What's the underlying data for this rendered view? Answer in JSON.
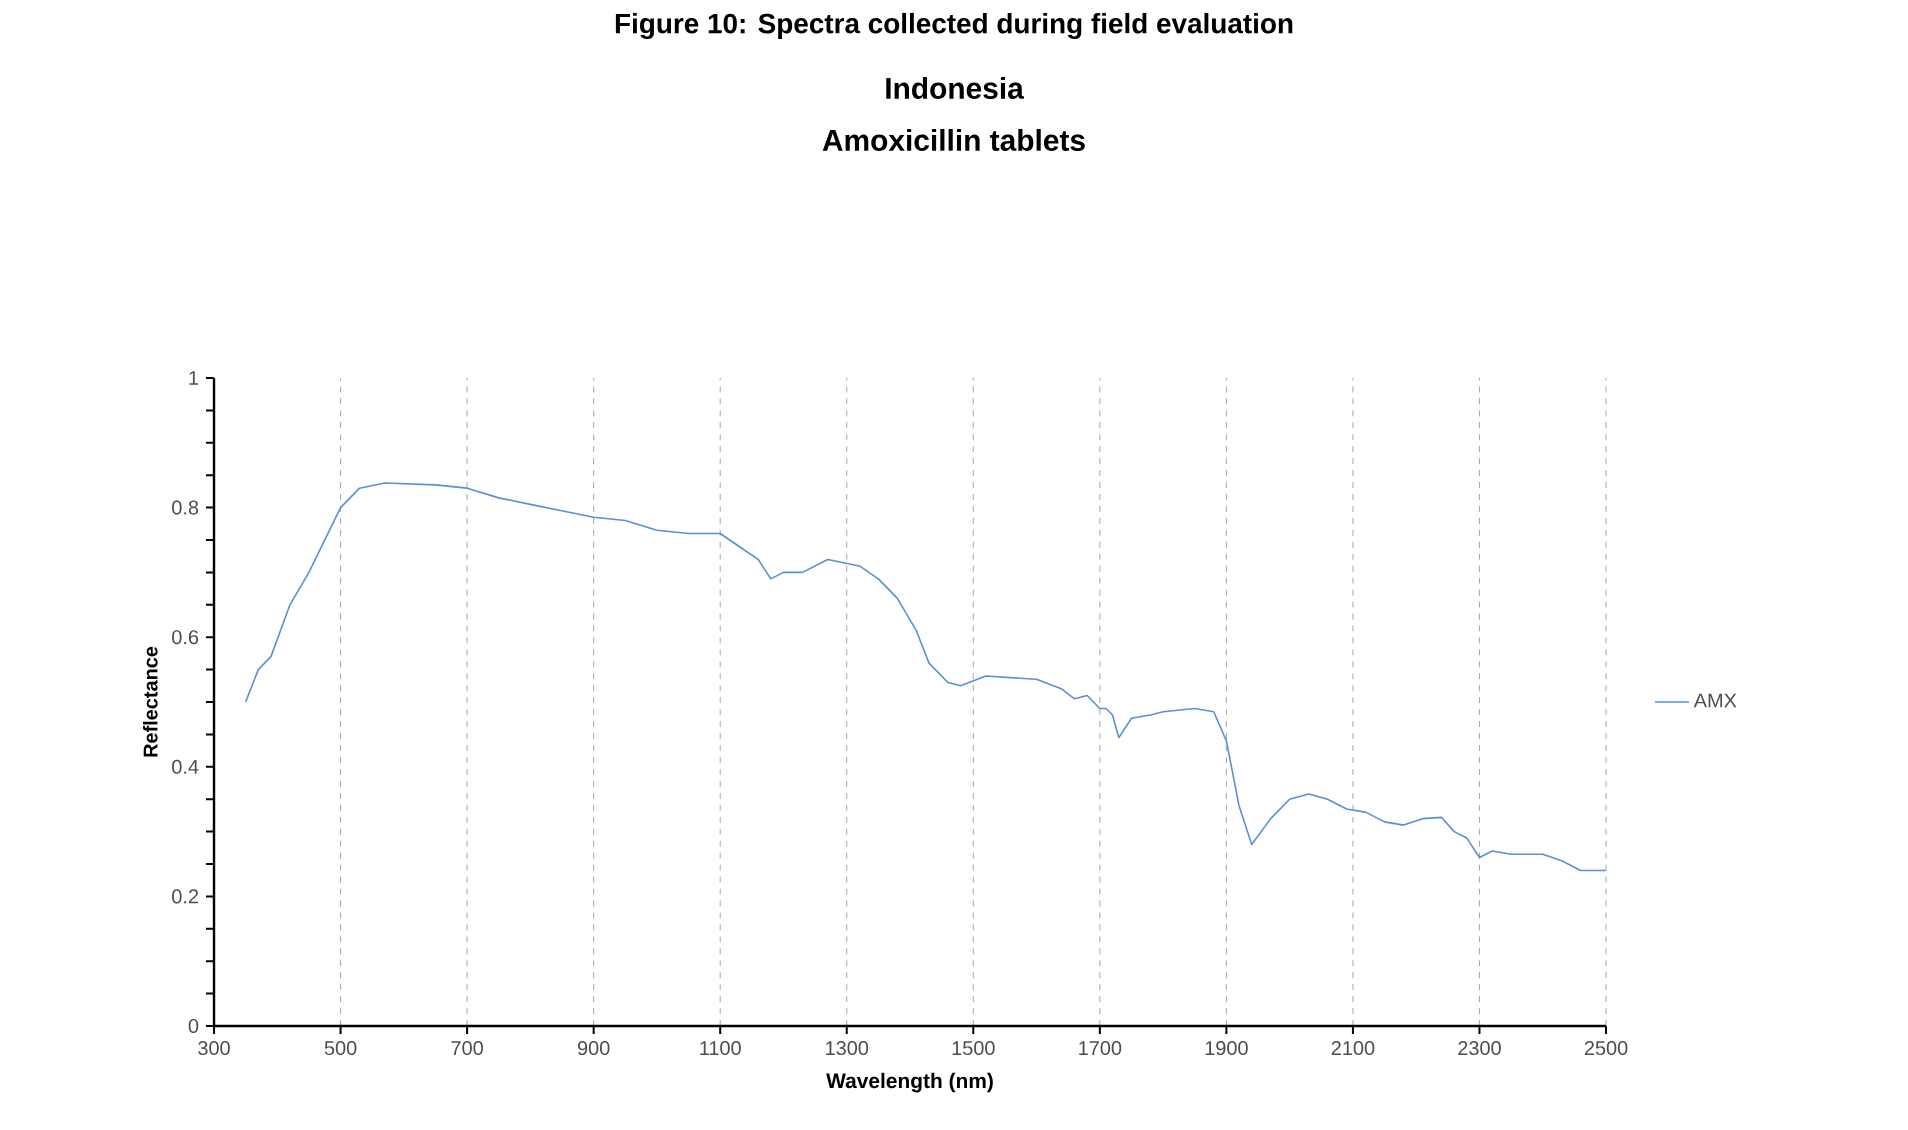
{
  "chart_data": {
    "type": "line",
    "title": "Indonesia",
    "subtitle": "Amoxicillin tablets",
    "annotations": [
      "Figure 10: Spectra collected during field evaluation"
    ],
    "xlabel": "Wavelength (nm)",
    "ylabel": "Reflectance",
    "xlim": [
      300,
      2500
    ],
    "xticks": [
      300,
      500,
      700,
      900,
      1100,
      1300,
      1500,
      1700,
      1900,
      2100,
      2300,
      2500
    ],
    "ylim": [
      0,
      1
    ],
    "yticks": [
      0,
      0.2,
      0.4,
      0.6,
      0.8,
      1
    ],
    "grid": "x",
    "legend": "right",
    "marker": "none",
    "line_style": "solid",
    "series": [
      {
        "name": "AMX",
        "color": "#5b8fd4",
        "x": [
          350,
          370,
          390,
          420,
          450,
          480,
          500,
          530,
          570,
          650,
          700,
          750,
          800,
          900,
          950,
          1000,
          1050,
          1100,
          1130,
          1160,
          1180,
          1200,
          1230,
          1270,
          1320,
          1350,
          1380,
          1410,
          1430,
          1460,
          1480,
          1520,
          1600,
          1640,
          1660,
          1680,
          1700,
          1710,
          1720,
          1730,
          1750,
          1780,
          1800,
          1850,
          1880,
          1900,
          1920,
          1940,
          1970,
          2000,
          2030,
          2060,
          2090,
          2120,
          2150,
          2180,
          2210,
          2240,
          2260,
          2280,
          2300,
          2320,
          2350,
          2400,
          2430,
          2460,
          2500
        ],
        "values": [
          0.5,
          0.55,
          0.57,
          0.65,
          0.7,
          0.76,
          0.8,
          0.83,
          0.838,
          0.835,
          0.83,
          0.815,
          0.805,
          0.785,
          0.78,
          0.765,
          0.76,
          0.76,
          0.74,
          0.72,
          0.69,
          0.7,
          0.7,
          0.72,
          0.71,
          0.69,
          0.66,
          0.61,
          0.56,
          0.53,
          0.525,
          0.54,
          0.535,
          0.52,
          0.505,
          0.51,
          0.49,
          0.49,
          0.48,
          0.445,
          0.475,
          0.48,
          0.485,
          0.49,
          0.485,
          0.44,
          0.34,
          0.28,
          0.32,
          0.35,
          0.358,
          0.35,
          0.335,
          0.33,
          0.315,
          0.31,
          0.32,
          0.322,
          0.3,
          0.29,
          0.26,
          0.27,
          0.265,
          0.265,
          0.255,
          0.24,
          0.24
        ]
      }
    ]
  }
}
